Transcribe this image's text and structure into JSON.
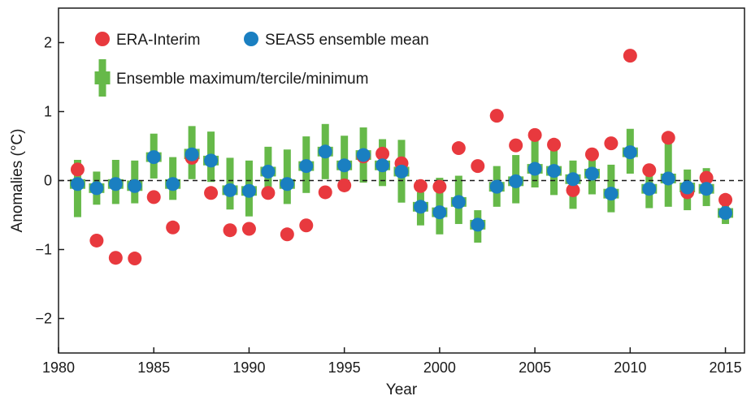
{
  "chart_data": {
    "type": "scatter",
    "xlabel": "Year",
    "ylabel": "Anomalies (°C)",
    "xlim": [
      1980,
      2016
    ],
    "ylim": [
      -2.5,
      2.5
    ],
    "xticks": [
      "1980",
      "1985",
      "1990",
      "1995",
      "2000",
      "2005",
      "2010",
      "2015"
    ],
    "yticks": [
      "2",
      "1",
      "0",
      "−1",
      "−2"
    ],
    "zero_line": "dashed",
    "grid": false,
    "legend_position": "top-left",
    "colors": {
      "era": "#e8393e",
      "seas5": "#1a7fc1",
      "ensemble": "#66b949"
    },
    "legend": {
      "era": "ERA-Interim",
      "seas5": "SEAS5 ensemble mean",
      "ensemble": "Ensemble maximum/tercile/minimum"
    },
    "years": [
      1981,
      1982,
      1983,
      1984,
      1985,
      1986,
      1987,
      1988,
      1989,
      1990,
      1991,
      1992,
      1993,
      1994,
      1995,
      1996,
      1997,
      1998,
      1999,
      2000,
      2001,
      2002,
      2003,
      2004,
      2005,
      2006,
      2007,
      2008,
      2009,
      2010,
      2011,
      2012,
      2013,
      2014,
      2015
    ],
    "series": [
      {
        "name": "ERA-Interim",
        "values": [
          0.16,
          -0.87,
          -1.12,
          -1.13,
          -0.24,
          -0.68,
          0.33,
          -0.18,
          -0.72,
          -0.7,
          -0.18,
          -0.78,
          -0.65,
          -0.17,
          -0.07,
          0.35,
          0.39,
          0.25,
          -0.08,
          -0.09,
          0.47,
          0.21,
          0.94,
          0.51,
          0.66,
          0.52,
          -0.14,
          0.38,
          0.54,
          1.81,
          0.15,
          0.62,
          -0.17,
          0.04,
          -0.28
        ]
      },
      {
        "name": "SEAS5 ensemble mean",
        "values": [
          -0.05,
          -0.11,
          -0.05,
          -0.08,
          0.34,
          -0.05,
          0.38,
          0.29,
          -0.14,
          -0.15,
          0.13,
          -0.05,
          0.21,
          0.42,
          0.22,
          0.37,
          0.22,
          0.13,
          -0.38,
          -0.46,
          -0.31,
          -0.64,
          -0.09,
          -0.01,
          0.17,
          0.14,
          0.02,
          0.1,
          -0.19,
          0.41,
          -0.12,
          0.03,
          -0.1,
          -0.12,
          -0.47
        ]
      }
    ],
    "ensemble": {
      "max": [
        0.3,
        0.13,
        0.3,
        0.29,
        0.68,
        0.34,
        0.79,
        0.71,
        0.33,
        0.29,
        0.49,
        0.45,
        0.64,
        0.82,
        0.65,
        0.77,
        0.6,
        0.59,
        -0.17,
        0.04,
        0.07,
        -0.43,
        0.21,
        0.37,
        0.58,
        0.47,
        0.29,
        0.32,
        0.23,
        0.75,
        0.22,
        0.6,
        0.16,
        0.18,
        -0.34
      ],
      "upper": [
        0.02,
        -0.04,
        0.02,
        0.0,
        0.41,
        0.02,
        0.46,
        0.36,
        -0.07,
        -0.08,
        0.2,
        0.02,
        0.28,
        0.49,
        0.29,
        0.44,
        0.29,
        0.2,
        -0.31,
        -0.39,
        -0.24,
        -0.57,
        -0.02,
        0.06,
        0.24,
        0.21,
        0.09,
        0.17,
        -0.12,
        0.48,
        -0.05,
        0.1,
        -0.03,
        -0.05,
        -0.4
      ],
      "lower": [
        -0.12,
        -0.18,
        -0.12,
        -0.15,
        0.27,
        -0.12,
        0.31,
        0.22,
        -0.21,
        -0.22,
        0.06,
        -0.12,
        0.14,
        0.35,
        0.15,
        0.3,
        0.15,
        0.06,
        -0.45,
        -0.53,
        -0.38,
        -0.71,
        -0.16,
        -0.08,
        0.1,
        0.07,
        -0.05,
        0.03,
        -0.26,
        0.34,
        -0.19,
        -0.04,
        -0.17,
        -0.19,
        -0.54
      ],
      "min": [
        -0.53,
        -0.35,
        -0.34,
        -0.33,
        0.03,
        -0.28,
        0.02,
        -0.02,
        -0.42,
        -0.52,
        -0.17,
        -0.34,
        -0.18,
        0.02,
        -0.09,
        -0.03,
        -0.08,
        -0.32,
        -0.65,
        -0.78,
        -0.63,
        -0.9,
        -0.38,
        -0.33,
        -0.1,
        -0.21,
        -0.41,
        -0.2,
        -0.46,
        0.1,
        -0.4,
        -0.38,
        -0.43,
        -0.37,
        -0.63
      ]
    }
  }
}
